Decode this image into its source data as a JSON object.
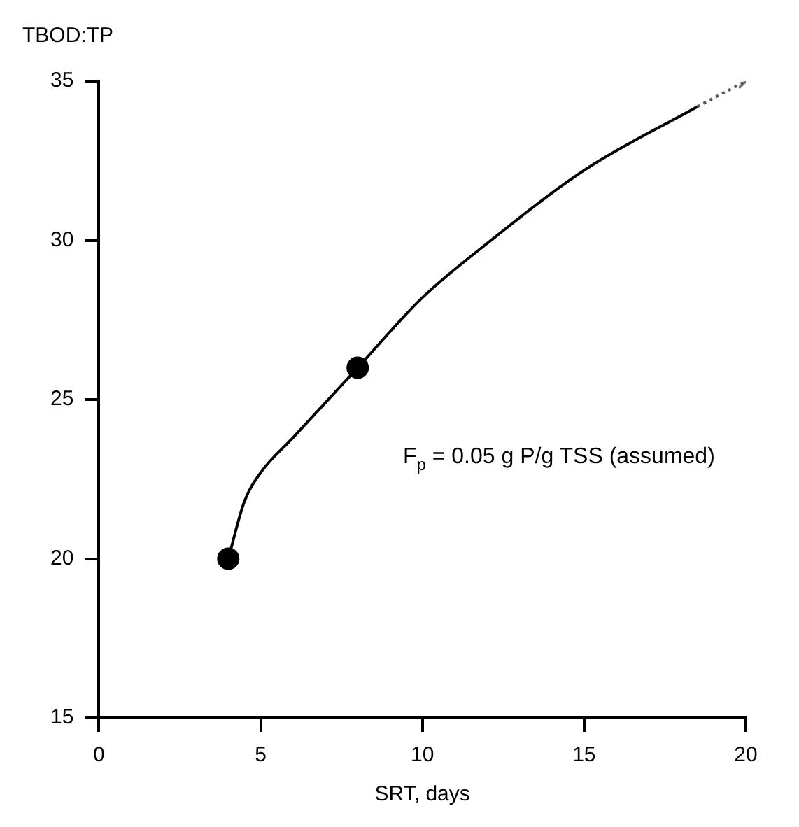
{
  "chart_data": {
    "type": "line",
    "xlabel": "SRT, days",
    "ylabel": "TBOD:TP",
    "xlim": [
      0,
      20
    ],
    "xticks": [
      0,
      5,
      10,
      15,
      20
    ],
    "ylim": [
      15,
      35
    ],
    "yticks": [
      15,
      20,
      25,
      30,
      35
    ],
    "grid": false,
    "legend": false,
    "series": [
      {
        "color": "#000000",
        "line_style": "solid",
        "marker": "none",
        "x": [
          4,
          4.5,
          5,
          6,
          8,
          10,
          12,
          15,
          18.5
        ],
        "values": [
          20,
          21.8,
          22.7,
          23.8,
          26,
          28.2,
          29.9,
          32.2,
          34.2
        ]
      },
      {
        "color": "#555555",
        "line_style": "dotted",
        "marker": "none",
        "x": [
          18.5,
          20
        ],
        "values": [
          34.2,
          35
        ]
      },
      {
        "type": "scatter",
        "color": "#000000",
        "marker": "circle",
        "x": [
          4,
          8
        ],
        "values": [
          20,
          26
        ]
      },
      {
        "type": "scatter",
        "color": "#777777",
        "marker": "cross",
        "x": [
          20
        ],
        "values": [
          35
        ]
      }
    ],
    "annotations": [
      "F$_{p}$ = 0.05 g P/g TSS (assumed)"
    ]
  }
}
